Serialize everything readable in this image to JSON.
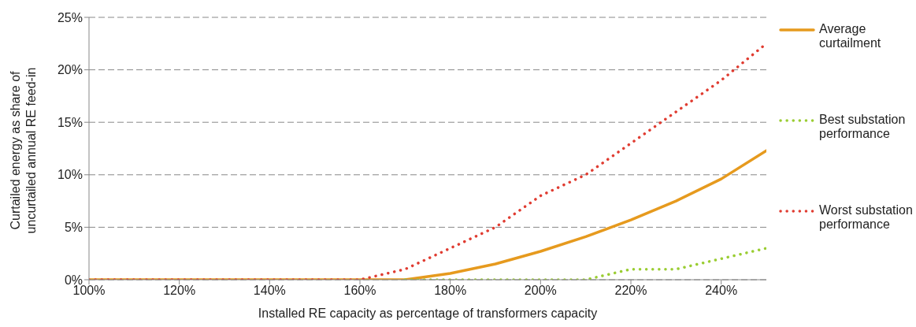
{
  "chart_data": {
    "type": "line",
    "xlabel": "Installed RE capacity as percentage of transformers capacity",
    "ylabel": "Curtailed energy as share of uncurtailed annual RE feed-in",
    "x": [
      100,
      110,
      120,
      130,
      140,
      150,
      160,
      170,
      180,
      190,
      200,
      210,
      220,
      230,
      240,
      250
    ],
    "series": [
      {
        "name": "Average curtailment",
        "color": "#e69a1e",
        "line_style": "solid",
        "values": [
          0,
          0,
          0,
          0,
          0,
          0,
          0,
          0,
          0.6,
          1.5,
          2.7,
          4.1,
          5.7,
          7.5,
          9.6,
          12.3
        ]
      },
      {
        "name": "Best substation performance",
        "color": "#9acd32",
        "line_style": "dotted",
        "values": [
          null,
          null,
          null,
          null,
          null,
          null,
          null,
          0,
          0,
          0,
          0,
          0,
          1.0,
          1.0,
          2.0,
          3.0
        ]
      },
      {
        "name": "Worst substation performance",
        "color": "#e03c31",
        "line_style": "dotted",
        "values": [
          0,
          0,
          0,
          0,
          0,
          0,
          0,
          1.0,
          3.0,
          5.0,
          8.0,
          10.0,
          13.0,
          16.0,
          19.0,
          22.5
        ]
      }
    ],
    "xlim": [
      100,
      250
    ],
    "xticks": [
      {
        "value": 100,
        "label": "100%"
      },
      {
        "value": 120,
        "label": "120%"
      },
      {
        "value": 140,
        "label": "140%"
      },
      {
        "value": 160,
        "label": "160%"
      },
      {
        "value": 180,
        "label": "180%"
      },
      {
        "value": 200,
        "label": "200%"
      },
      {
        "value": 220,
        "label": "220%"
      },
      {
        "value": 240,
        "label": "240%"
      }
    ],
    "ylim": [
      0,
      25
    ],
    "yticks": [
      {
        "value": 0,
        "label": "0%"
      },
      {
        "value": 5,
        "label": "5%"
      },
      {
        "value": 10,
        "label": "10%"
      },
      {
        "value": 15,
        "label": "15%"
      },
      {
        "value": 20,
        "label": "20%"
      },
      {
        "value": 25,
        "label": "25%"
      }
    ],
    "grid": "y",
    "legend": "right",
    "marker": "none"
  }
}
